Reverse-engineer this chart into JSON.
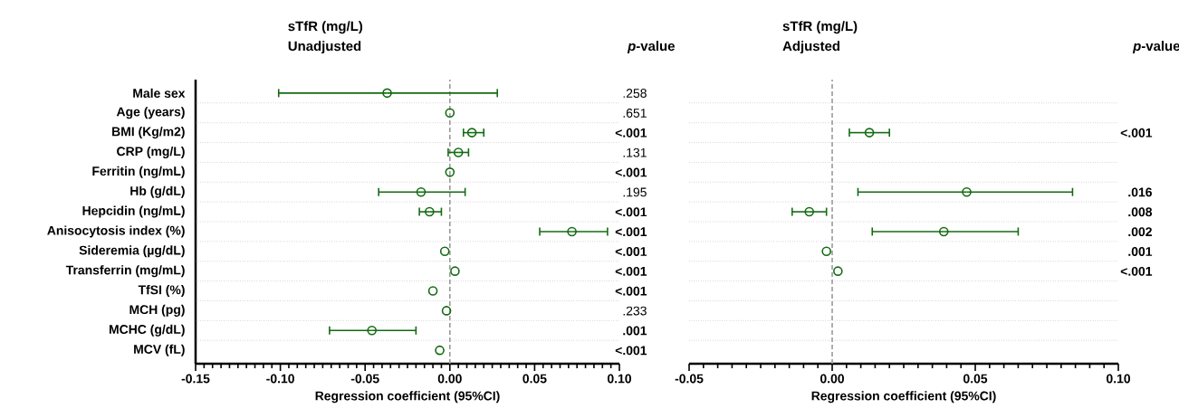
{
  "chart_data": [
    {
      "type": "scatter",
      "orientation": "horizontal",
      "title": "sTfR (mg/L)",
      "subtitle": "Unadjusted",
      "xlabel": "Regression coefficient (95%CI)",
      "categories": [
        "Male sex",
        "Age (years)",
        "BMI (Kg/m2)",
        "CRP (mg/L)",
        "Ferritin (ng/mL)",
        "Hb (g/dL)",
        "Hepcidin (ng/mL)",
        "Anisocytosis index (%)",
        "Sideremia (µg/dL)",
        "Transferrin (mg/mL)",
        "TfSI (%)",
        "MCH (pg)",
        "MCHC (g/dL)",
        "MCV (fL)"
      ],
      "values": [
        -0.037,
        0.0,
        0.013,
        0.005,
        0.0,
        -0.017,
        -0.012,
        0.072,
        -0.003,
        0.003,
        -0.01,
        -0.002,
        -0.046,
        -0.006
      ],
      "errors": [
        [
          -0.101,
          0.028
        ],
        null,
        [
          0.008,
          0.02
        ],
        [
          -0.001,
          0.011
        ],
        null,
        [
          -0.042,
          0.009
        ],
        [
          -0.018,
          -0.005
        ],
        [
          0.053,
          0.093
        ],
        null,
        null,
        null,
        null,
        [
          -0.071,
          -0.02
        ],
        null
      ],
      "color": "#136b13",
      "marker": "circle",
      "grid": "y",
      "xlim": [
        -0.15,
        0.1
      ],
      "xticks": [
        {
          "value": -0.15,
          "label": "-0.15"
        },
        {
          "value": -0.1,
          "label": "-0.10"
        },
        {
          "value": -0.05,
          "label": "-0.05"
        },
        {
          "value": 0,
          "label": "0.00"
        },
        {
          "value": 0.05,
          "label": "0.05"
        },
        {
          "value": 0.1,
          "label": "0.10"
        }
      ],
      "ref_lines": [
        {
          "axis": "x",
          "value": 0,
          "color": "#999999",
          "line_style": "dashed"
        }
      ],
      "annotations": [
        "*p*-value",
        ".258",
        ".651",
        "**<.001**",
        ".131",
        "**<.001**",
        ".195",
        "**<.001**",
        "**<.001**",
        "**<.001**",
        "**<.001**",
        "**<.001**",
        ".233",
        "**.001**",
        "**<.001**"
      ]
    },
    {
      "type": "scatter",
      "orientation": "horizontal",
      "title": "sTfR (mg/L)",
      "subtitle": "Adjusted",
      "xlabel": "Regression coefficient (95%CI)",
      "categories": [
        null,
        null,
        null,
        null,
        null,
        null,
        null,
        null,
        null,
        null,
        null,
        null,
        null,
        null
      ],
      "values": [
        null,
        null,
        0.013,
        null,
        null,
        0.047,
        -0.008,
        0.039,
        -0.002,
        0.002,
        null,
        null,
        null,
        null
      ],
      "errors": [
        null,
        null,
        [
          0.006,
          0.02
        ],
        null,
        null,
        [
          0.009,
          0.084
        ],
        [
          -0.014,
          -0.002
        ],
        [
          0.014,
          0.065
        ],
        null,
        null,
        null,
        null,
        null,
        null
      ],
      "color": "#136b13",
      "marker": "circle",
      "grid": "y",
      "tick_labels": "x",
      "xlim": [
        -0.05,
        0.1
      ],
      "xticks": [
        {
          "value": -0.05,
          "label": "-0.05"
        },
        {
          "value": 0,
          "label": "0.00"
        },
        {
          "value": 0.05,
          "label": "0.05"
        },
        {
          "value": 0.1,
          "label": "0.10"
        }
      ],
      "ref_lines": [
        {
          "axis": "x",
          "value": 0,
          "color": "#999999",
          "line_style": "dashed"
        }
      ],
      "annotations": [
        "*p*-value",
        "**<.001**",
        "**.016**",
        "**.008**",
        "**.002**",
        "**.001**",
        "**<.001**"
      ]
    }
  ]
}
